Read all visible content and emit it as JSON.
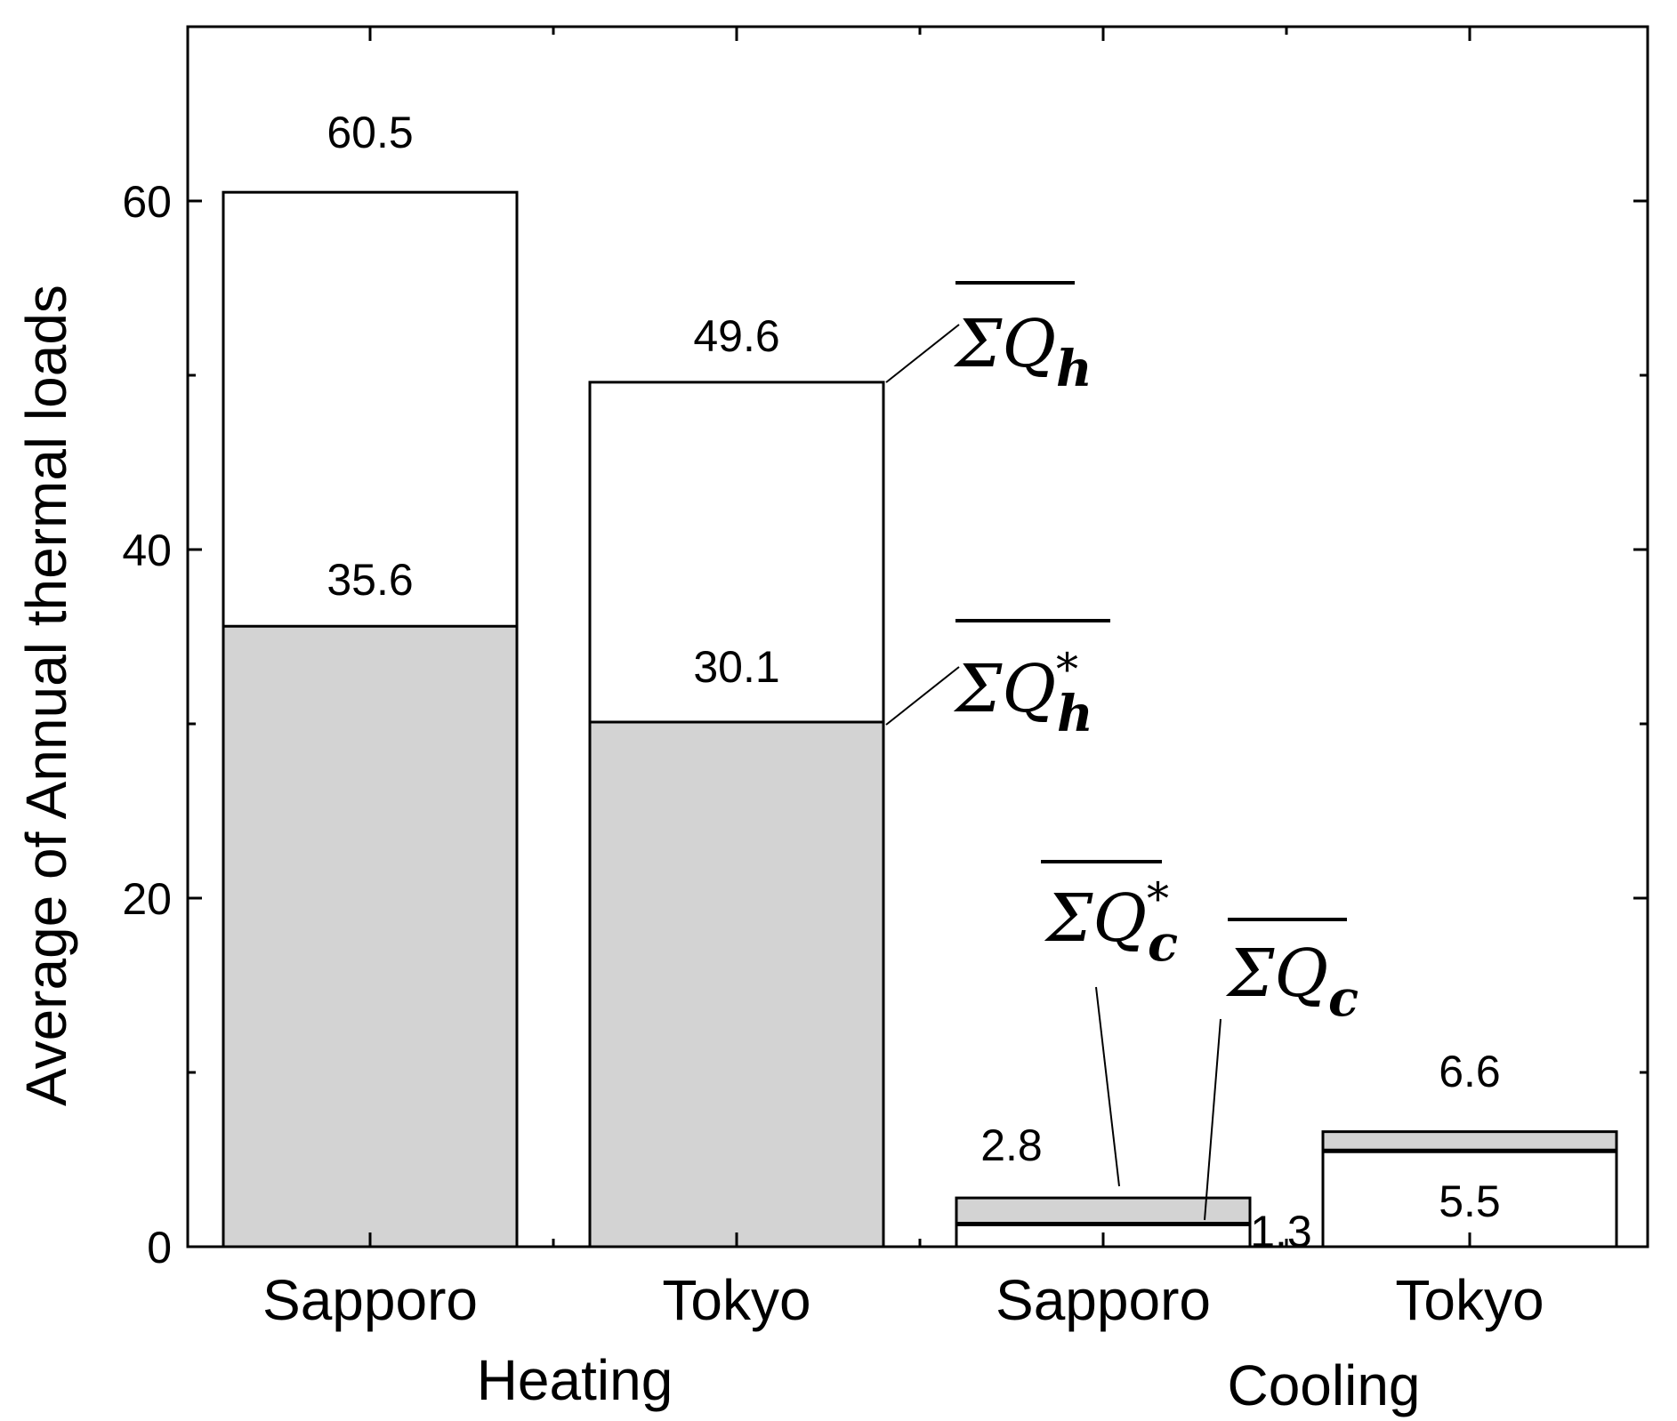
{
  "chart_data": {
    "type": "bar",
    "ylabel": "Average of  Annual thermal loads",
    "ylim": [
      0,
      70
    ],
    "yticks": [
      0,
      20,
      40,
      60
    ],
    "groups": [
      {
        "label": "Heating",
        "bars": [
          {
            "category": "Sapporo",
            "total": 60.5,
            "lower": 35.6,
            "lower_shaded": true,
            "total_label": "60.5",
            "lower_label": "35.6"
          },
          {
            "category": "Tokyo",
            "total": 49.6,
            "lower": 30.1,
            "lower_shaded": true,
            "total_label": "49.6",
            "lower_label": "30.1"
          }
        ]
      },
      {
        "label": "Cooling",
        "bars": [
          {
            "category": "Sapporo",
            "total": 2.8,
            "lower": 1.3,
            "lower_shaded": false,
            "total_label": "2.8",
            "lower_label": "1.3"
          },
          {
            "category": "Tokyo",
            "total": 6.6,
            "lower": 5.5,
            "lower_shaded": false,
            "total_label": "6.6",
            "lower_label": "5.5"
          }
        ]
      }
    ],
    "annotations": [
      {
        "text": "ΣQ_h",
        "base": "ΣQ",
        "sub": "h",
        "sup": ""
      },
      {
        "text": "ΣQ*_h",
        "base": "ΣQ",
        "sub": "h",
        "sup": "*"
      },
      {
        "text": "ΣQ*_c",
        "base": "ΣQ",
        "sub": "c",
        "sup": "*"
      },
      {
        "text": "ΣQ_c",
        "base": "ΣQ",
        "sub": "c",
        "sup": ""
      }
    ],
    "colors": {
      "shaded": "#d3d3d3",
      "unshaded": "#ffffff",
      "edge": "#000000"
    },
    "grid": false,
    "legend": "none"
  }
}
